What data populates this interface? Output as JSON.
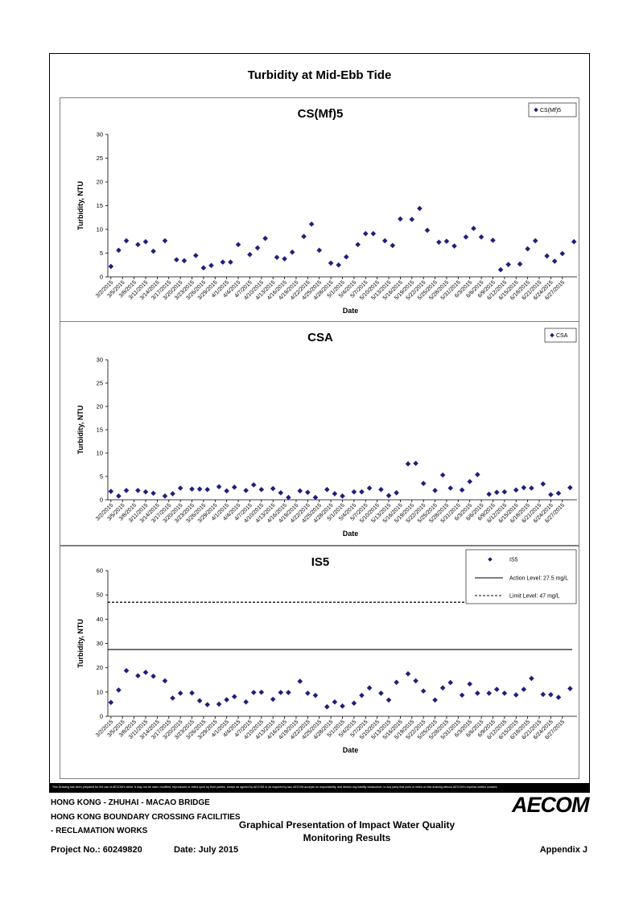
{
  "page": {
    "main_title": "Turbidity at Mid-Ebb Tide",
    "disclaimer": "This Drawing has been prepared for the use of AECOM's client. It may not be used, modified, reproduced or relied upon by third parties, except as agreed by AECOM or as required by law. AECOM accepts no responsibility, and denies any liability whatsoever, to any party that uses or relies on this drawing without AECOM's express written consent.",
    "footer": {
      "line1": "HONG KONG - ZHUHAI - MACAO BRIDGE",
      "line2": "HONG KONG BOUNDARY CROSSING FACILITIES",
      "line3": "- RECLAMATION WORKS",
      "doc_title_1": "Graphical Presentation of Impact Water Quality",
      "doc_title_2": "Monitoring Results",
      "logo": "AECOM",
      "project_no": "Project No.: 60249820",
      "date": "Date: July 2015",
      "appendix": "Appendix J"
    }
  },
  "chart_data": [
    {
      "type": "scatter",
      "title": "CS(Mf)5",
      "xlabel": "Date",
      "ylabel": "Turbidity, NTU",
      "ylim": [
        0,
        30
      ],
      "yticks": [
        0,
        5,
        10,
        15,
        20,
        25,
        30
      ],
      "legend_position": "top-right",
      "x_tick_labels": [
        "3/2/2015",
        "3/5/2015",
        "3/8/2015",
        "3/11/2015",
        "3/14/2015",
        "3/17/2015",
        "3/20/2015",
        "3/23/2015",
        "3/26/2015",
        "3/29/2015",
        "4/1/2015",
        "4/4/2015",
        "4/7/2015",
        "4/10/2015",
        "4/13/2015",
        "4/16/2015",
        "4/19/2015",
        "4/22/2015",
        "4/25/2015",
        "4/28/2015",
        "5/1/2015",
        "5/4/2015",
        "5/7/2015",
        "5/10/2015",
        "5/13/2015",
        "5/16/2015",
        "5/19/2015",
        "5/22/2015",
        "5/25/2015",
        "5/28/2015",
        "5/31/2015",
        "6/3/2015",
        "6/6/2015",
        "6/9/2015",
        "6/12/2015",
        "6/15/2015",
        "6/18/2015",
        "6/21/2015",
        "6/24/2015",
        "6/27/2015"
      ],
      "series": [
        {
          "name": "CS(Mf)5",
          "color": "#1f1f7a",
          "x": [
            "3/2/2015",
            "3/4/2015",
            "3/6/2015",
            "3/9/2015",
            "3/11/2015",
            "3/13/2015",
            "3/16/2015",
            "3/19/2015",
            "3/21/2015",
            "3/24/2015",
            "3/26/2015",
            "3/28/2015",
            "3/31/2015",
            "4/2/2015",
            "4/4/2015",
            "4/7/2015",
            "4/9/2015",
            "4/11/2015",
            "4/14/2015",
            "4/16/2015",
            "4/18/2015",
            "4/21/2015",
            "4/23/2015",
            "4/25/2015",
            "4/28/2015",
            "4/30/2015",
            "5/2/2015",
            "5/5/2015",
            "5/7/2015",
            "5/9/2015",
            "5/12/2015",
            "5/14/2015",
            "5/16/2015",
            "5/19/2015",
            "5/21/2015",
            "5/23/2015",
            "5/26/2015",
            "5/28/2015",
            "5/30/2015",
            "6/2/2015",
            "6/4/2015",
            "6/6/2015",
            "6/9/2015",
            "6/11/2015",
            "6/13/2015",
            "6/16/2015",
            "6/18/2015",
            "6/20/2015",
            "6/23/2015",
            "6/25/2015",
            "6/27/2015",
            "6/30/2015"
          ],
          "values": [
            2.2,
            5.6,
            7.6,
            6.8,
            7.4,
            5.4,
            7.6,
            3.6,
            3.4,
            4.5,
            1.9,
            2.4,
            3.1,
            3.1,
            6.8,
            4.7,
            6.1,
            8.1,
            4.1,
            3.8,
            5.2,
            8.5,
            11.1,
            5.6,
            2.9,
            2.5,
            4.2,
            6.8,
            9.1,
            9.1,
            7.6,
            6.6,
            12.2,
            12.1,
            14.4,
            9.8,
            7.3,
            7.5,
            6.5,
            8.4,
            10.2,
            8.4,
            7.7,
            1.5,
            2.6,
            2.7,
            5.9,
            7.6,
            4.4,
            3.3,
            4.9,
            7.4
          ]
        }
      ]
    },
    {
      "type": "scatter",
      "title": "CSA",
      "xlabel": "Date",
      "ylabel": "Turbidity, NTU",
      "ylim": [
        0,
        30
      ],
      "yticks": [
        0,
        5,
        10,
        15,
        20,
        25,
        30
      ],
      "legend_position": "top-right",
      "x_tick_labels": [
        "3/2/2015",
        "3/5/2015",
        "3/8/2015",
        "3/11/2015",
        "3/14/2015",
        "3/17/2015",
        "3/20/2015",
        "3/23/2015",
        "3/26/2015",
        "3/29/2015",
        "4/1/2015",
        "4/4/2015",
        "4/7/2015",
        "4/10/2015",
        "4/13/2015",
        "4/16/2015",
        "4/19/2015",
        "4/22/2015",
        "4/25/2015",
        "4/28/2015",
        "5/1/2015",
        "5/4/2015",
        "5/7/2015",
        "5/10/2015",
        "5/13/2015",
        "5/16/2015",
        "5/19/2015",
        "5/22/2015",
        "5/25/2015",
        "5/28/2015",
        "5/31/2015",
        "6/3/2015",
        "6/6/2015",
        "6/9/2015",
        "6/12/2015",
        "6/15/2015",
        "6/18/2015",
        "6/21/2015",
        "6/24/2015",
        "6/27/2015"
      ],
      "series": [
        {
          "name": "CSA",
          "color": "#1f1f7a",
          "x": [
            "3/2/2015",
            "3/4/2015",
            "3/6/2015",
            "3/9/2015",
            "3/11/2015",
            "3/13/2015",
            "3/16/2015",
            "3/18/2015",
            "3/20/2015",
            "3/23/2015",
            "3/25/2015",
            "3/27/2015",
            "3/30/2015",
            "4/1/2015",
            "4/3/2015",
            "4/6/2015",
            "4/8/2015",
            "4/10/2015",
            "4/13/2015",
            "4/15/2015",
            "4/17/2015",
            "4/20/2015",
            "4/22/2015",
            "4/24/2015",
            "4/27/2015",
            "4/29/2015",
            "5/1/2015",
            "5/4/2015",
            "5/6/2015",
            "5/8/2015",
            "5/11/2015",
            "5/13/2015",
            "5/15/2015",
            "5/18/2015",
            "5/20/2015",
            "5/22/2015",
            "5/25/2015",
            "5/27/2015",
            "5/29/2015",
            "6/1/2015",
            "6/3/2015",
            "6/5/2015",
            "6/8/2015",
            "6/10/2015",
            "6/12/2015",
            "6/15/2015",
            "6/17/2015",
            "6/19/2015",
            "6/22/2015",
            "6/24/2015",
            "6/26/2015",
            "6/29/2015"
          ],
          "values": [
            1.8,
            0.8,
            2.0,
            2.0,
            1.7,
            1.4,
            0.8,
            1.3,
            2.5,
            2.3,
            2.3,
            2.2,
            2.8,
            1.9,
            2.7,
            2.0,
            3.2,
            2.2,
            2.4,
            1.5,
            0.5,
            1.9,
            1.6,
            0.5,
            2.2,
            1.3,
            0.8,
            1.7,
            1.7,
            2.5,
            2.2,
            0.9,
            1.5,
            7.7,
            7.8,
            3.5,
            2.0,
            5.3,
            2.5,
            2.1,
            3.9,
            5.4,
            1.2,
            1.6,
            1.7,
            2.1,
            2.6,
            2.5,
            3.4,
            1.1,
            1.4,
            2.6
          ]
        }
      ]
    },
    {
      "type": "scatter",
      "title": "IS5",
      "xlabel": "Date",
      "ylabel": "Turbidity, NTU",
      "ylim": [
        0,
        60
      ],
      "yticks": [
        0,
        10,
        20,
        30,
        40,
        50,
        60
      ],
      "legend_position": "top-right",
      "x_tick_labels": [
        "3/2/2015",
        "3/5/2015",
        "3/8/2015",
        "3/11/2015",
        "3/14/2015",
        "3/17/2015",
        "3/20/2015",
        "3/23/2015",
        "3/26/2015",
        "3/29/2015",
        "4/1/2015",
        "4/4/2015",
        "4/7/2015",
        "4/10/2015",
        "4/13/2015",
        "4/16/2015",
        "4/19/2015",
        "4/22/2015",
        "4/25/2015",
        "4/28/2015",
        "5/1/2015",
        "5/4/2015",
        "5/7/2015",
        "5/10/2015",
        "5/13/2015",
        "5/16/2015",
        "5/19/2015",
        "5/22/2015",
        "5/25/2015",
        "5/28/2015",
        "5/31/2015",
        "6/3/2015",
        "6/6/2015",
        "6/9/2015",
        "6/12/2015",
        "6/15/2015",
        "6/18/2015",
        "6/21/2015",
        "6/24/2015",
        "6/27/2015"
      ],
      "series": [
        {
          "name": "IS5",
          "color": "#1f1f7a",
          "x": [
            "3/2/2015",
            "3/4/2015",
            "3/6/2015",
            "3/9/2015",
            "3/11/2015",
            "3/13/2015",
            "3/16/2015",
            "3/18/2015",
            "3/20/2015",
            "3/23/2015",
            "3/25/2015",
            "3/27/2015",
            "3/30/2015",
            "4/1/2015",
            "4/3/2015",
            "4/6/2015",
            "4/8/2015",
            "4/10/2015",
            "4/13/2015",
            "4/15/2015",
            "4/17/2015",
            "4/20/2015",
            "4/22/2015",
            "4/24/2015",
            "4/27/2015",
            "4/29/2015",
            "5/1/2015",
            "5/4/2015",
            "5/6/2015",
            "5/8/2015",
            "5/11/2015",
            "5/13/2015",
            "5/15/2015",
            "5/18/2015",
            "5/20/2015",
            "5/22/2015",
            "5/25/2015",
            "5/27/2015",
            "5/29/2015",
            "6/1/2015",
            "6/3/2015",
            "6/5/2015",
            "6/8/2015",
            "6/10/2015",
            "6/12/2015",
            "6/15/2015",
            "6/17/2015",
            "6/19/2015",
            "6/22/2015",
            "6/24/2015",
            "6/26/2015",
            "6/29/2015"
          ],
          "values": [
            5.7,
            10.8,
            18.8,
            16.7,
            18.1,
            16.5,
            14.6,
            7.5,
            9.5,
            9.6,
            6.4,
            4.8,
            5.0,
            6.8,
            8.1,
            5.9,
            9.8,
            9.9,
            7.0,
            9.8,
            9.8,
            14.4,
            9.5,
            8.6,
            3.9,
            5.9,
            4.2,
            5.4,
            8.6,
            11.7,
            9.5,
            6.7,
            14.0,
            17.5,
            14.6,
            10.4,
            6.7,
            11.7,
            13.9,
            8.7,
            13.3,
            9.5,
            9.5,
            11.1,
            9.5,
            8.8,
            11.1,
            15.6,
            9.0,
            8.9,
            7.8,
            11.4
          ]
        },
        {
          "name": "Action Level: 27.5 mg/L",
          "color": "#000000",
          "line": "solid",
          "level": 27.5
        },
        {
          "name": "Limit Level: 47 mg/L",
          "color": "#000000",
          "line": "dashed",
          "level": 47
        }
      ]
    }
  ]
}
